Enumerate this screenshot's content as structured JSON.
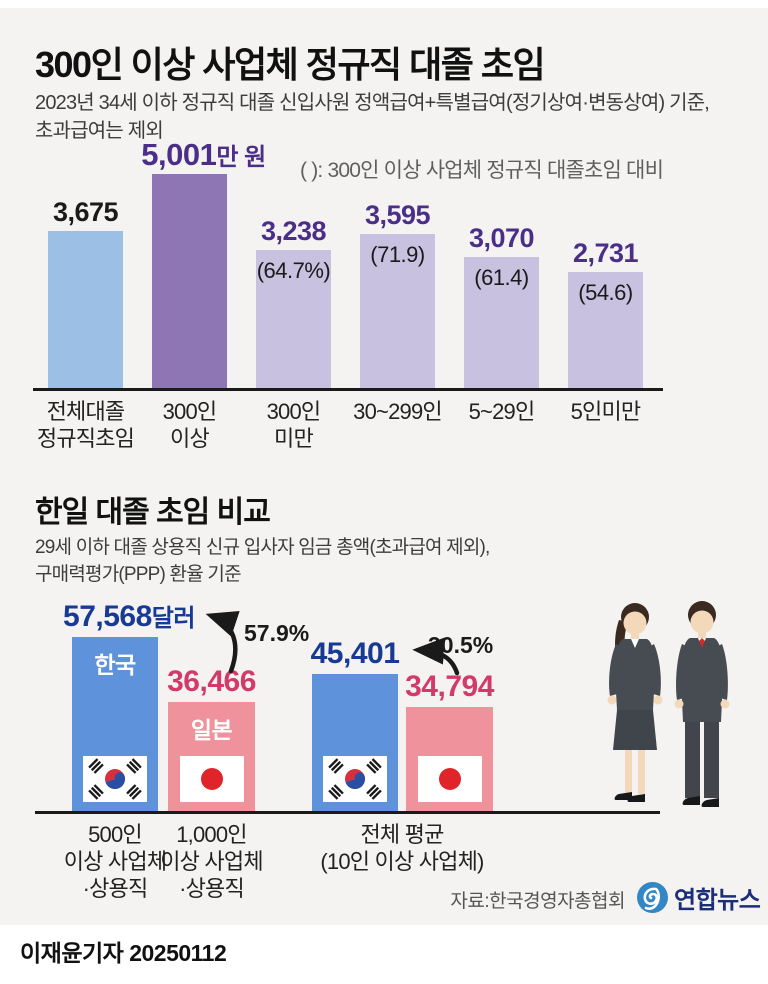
{
  "colors": {
    "background": "#f4f3f1",
    "bar_all_grads": "#9cbfe6",
    "bar_300plus": "#8e75b4",
    "bar_small": "#c8c1e0",
    "purple_text": "#4b2e87",
    "black_text": "#1a1a1a",
    "korea_bar": "#5e93dc",
    "japan_bar": "#f0929b",
    "korea_text": "#173a94",
    "japan_text": "#d13a6a",
    "logo_blue": "#3487c5",
    "logo_navy": "#1b2e78"
  },
  "chart_data": [
    {
      "type": "bar",
      "title": "300인 이상 사업체 정규직 대졸 초임",
      "subtitle_lines": [
        "2023년 34세 이하 정규직 대졸 신입사원 정액급여+특별급여(정기상여·변동상여) 기준,",
        "초과급여는 제외"
      ],
      "note": "( ): 300인 이상 사업체 정규직 대졸초임 대비",
      "unit": "만 원",
      "ylim": [
        0,
        5001
      ],
      "bars": [
        {
          "category_lines": [
            "전체대졸",
            "정규직초임"
          ],
          "value": 3675,
          "display": "3,675",
          "suffix": "",
          "ratio": ""
        },
        {
          "category_lines": [
            "300인",
            "이상"
          ],
          "value": 5001,
          "display": "5,001",
          "suffix": "만 원",
          "ratio": ""
        },
        {
          "category_lines": [
            "300인",
            "미만"
          ],
          "value": 3238,
          "display": "3,238",
          "suffix": "",
          "ratio": "(64.7%)"
        },
        {
          "category_lines": [
            "30~299인"
          ],
          "value": 3595,
          "display": "3,595",
          "suffix": "",
          "ratio": "(71.9)"
        },
        {
          "category_lines": [
            "5~29인"
          ],
          "value": 3070,
          "display": "3,070",
          "suffix": "",
          "ratio": "(61.4)"
        },
        {
          "category_lines": [
            "5인미만"
          ],
          "value": 2731,
          "display": "2,731",
          "suffix": "",
          "ratio": "(54.6)"
        }
      ]
    },
    {
      "type": "bar",
      "title": "한일 대졸 초임 비교",
      "subtitle_lines": [
        "29세 이하 대졸 상용직 신규 입사자 임금 총액(초과급여 제외),",
        "구매력평가(PPP) 환율 기준"
      ],
      "unit": "달러",
      "ylim": [
        0,
        57568
      ],
      "series": [
        {
          "name": "한국",
          "values": [
            57568,
            45401
          ]
        },
        {
          "name": "일본",
          "values": [
            36466,
            34794
          ]
        }
      ],
      "bars": [
        {
          "country": "한국",
          "flag": "kr",
          "value": 57568,
          "display": "57,568",
          "suffix": "달러",
          "inside_label": "한국"
        },
        {
          "country": "일본",
          "flag": "jp",
          "value": 36466,
          "display": "36,466",
          "suffix": "",
          "inside_label": "일본"
        },
        {
          "country": "한국",
          "flag": "kr",
          "value": 45401,
          "display": "45,401",
          "suffix": "",
          "inside_label": ""
        },
        {
          "country": "일본",
          "flag": "jp",
          "value": 34794,
          "display": "34,794",
          "suffix": "",
          "inside_label": ""
        }
      ],
      "gap_labels": [
        "57.9%",
        "30.5%"
      ],
      "category_groups": [
        {
          "lines": [
            "500인",
            "이상 사업체",
            "·상용직"
          ]
        },
        {
          "lines": [
            "1,000인",
            "이상 사업체",
            "·상용직"
          ]
        },
        {
          "lines": [
            "전체 평균",
            "(10인 이상 사업체)"
          ]
        }
      ]
    }
  ],
  "source": {
    "label": "자료:한국경영자총협회",
    "agency": "연합뉴스"
  },
  "footer": {
    "reporter": "이재윤기자",
    "date": "20250112"
  }
}
